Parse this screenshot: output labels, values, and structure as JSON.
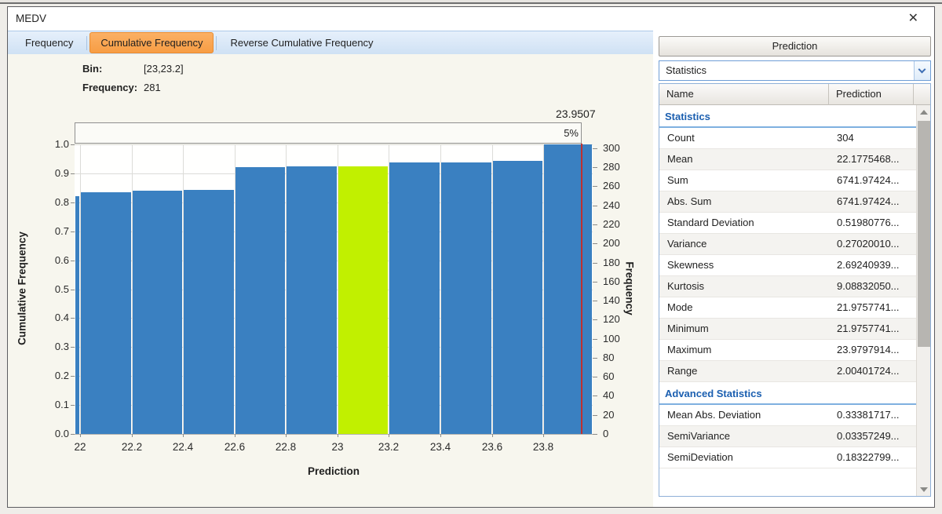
{
  "window": {
    "title": "MEDV",
    "close_label": "✕"
  },
  "tabs": [
    {
      "label": "Frequency",
      "active": false
    },
    {
      "label": "Cumulative Frequency",
      "active": true
    },
    {
      "label": "Reverse Cumulative Frequency",
      "active": false
    }
  ],
  "tooltip": {
    "bin_label": "Bin:",
    "bin_value": "[23,23.2]",
    "freq_label": "Frequency:",
    "freq_value": "281"
  },
  "chart_data": {
    "type": "bar",
    "xlabel": "Prediction",
    "ylabel_left": "Cumulative Frequency",
    "ylabel_right": "Frequency",
    "x_range": [
      21.978,
      23.992
    ],
    "y_left_range": [
      0,
      1
    ],
    "y_right_max_count": 304,
    "grid": true,
    "bar_color": "#3a80c1",
    "highlight_color": "#c1f000",
    "highlight_bin_index": 6,
    "x_ticks": [
      {
        "v": 22,
        "label": "22"
      },
      {
        "v": 22.2,
        "label": "22.2"
      },
      {
        "v": 22.4,
        "label": "22.4"
      },
      {
        "v": 22.6,
        "label": "22.6"
      },
      {
        "v": 22.8,
        "label": "22.8"
      },
      {
        "v": 23,
        "label": "23"
      },
      {
        "v": 23.2,
        "label": "23.2"
      },
      {
        "v": 23.4,
        "label": "23.4"
      },
      {
        "v": 23.6,
        "label": "23.6"
      },
      {
        "v": 23.8,
        "label": "23.8"
      }
    ],
    "y_left_ticks": [
      {
        "v": 0.0,
        "label": "0.0"
      },
      {
        "v": 0.1,
        "label": "0.1"
      },
      {
        "v": 0.2,
        "label": "0.2"
      },
      {
        "v": 0.3,
        "label": "0.3"
      },
      {
        "v": 0.4,
        "label": "0.4"
      },
      {
        "v": 0.5,
        "label": "0.5"
      },
      {
        "v": 0.6,
        "label": "0.6"
      },
      {
        "v": 0.7,
        "label": "0.7"
      },
      {
        "v": 0.8,
        "label": "0.8"
      },
      {
        "v": 0.9,
        "label": "0.9"
      },
      {
        "v": 1.0,
        "label": "1.0"
      }
    ],
    "y_right_ticks": [
      0,
      20,
      40,
      60,
      80,
      100,
      120,
      140,
      160,
      180,
      200,
      220,
      240,
      260,
      280,
      300
    ],
    "bins": [
      {
        "x0": 21.978,
        "x1": 22.0,
        "cum": 0.822,
        "count": 250
      },
      {
        "x0": 22.0,
        "x1": 22.2,
        "cum": 0.8355,
        "count": 254
      },
      {
        "x0": 22.2,
        "x1": 22.4,
        "cum": 0.8388,
        "count": 255
      },
      {
        "x0": 22.4,
        "x1": 22.6,
        "cum": 0.8421,
        "count": 256
      },
      {
        "x0": 22.6,
        "x1": 22.8,
        "cum": 0.9211,
        "count": 280
      },
      {
        "x0": 22.8,
        "x1": 23.0,
        "cum": 0.9243,
        "count": 281
      },
      {
        "x0": 23.0,
        "x1": 23.2,
        "cum": 0.9243,
        "count": 281
      },
      {
        "x0": 23.2,
        "x1": 23.4,
        "cum": 0.9375,
        "count": 285
      },
      {
        "x0": 23.4,
        "x1": 23.6,
        "cum": 0.9375,
        "count": 285
      },
      {
        "x0": 23.6,
        "x1": 23.8,
        "cum": 0.9441,
        "count": 287
      },
      {
        "x0": 23.8,
        "x1": 23.992,
        "cum": 1.0,
        "count": 304
      }
    ],
    "marker": {
      "value": 23.9507,
      "label": "23.9507",
      "percent_label": "5%",
      "color": "#bf3030"
    }
  },
  "right_panel": {
    "column_button": "Prediction",
    "dropdown_value": "Statistics",
    "table": {
      "columns": [
        "Name",
        "Prediction"
      ],
      "groups": [
        {
          "header": "Statistics",
          "rows": [
            [
              "Count",
              "304"
            ],
            [
              "Mean",
              "22.1775468..."
            ],
            [
              "Sum",
              "6741.97424..."
            ],
            [
              "Abs. Sum",
              "6741.97424..."
            ],
            [
              "Standard Deviation",
              "0.51980776..."
            ],
            [
              "Variance",
              "0.27020010..."
            ],
            [
              "Skewness",
              "2.69240939..."
            ],
            [
              "Kurtosis",
              "9.08832050..."
            ],
            [
              "Mode",
              "21.9757741..."
            ],
            [
              "Minimum",
              "21.9757741..."
            ],
            [
              "Maximum",
              "23.9797914..."
            ],
            [
              "Range",
              "2.00401724..."
            ]
          ]
        },
        {
          "header": "Advanced Statistics",
          "rows": [
            [
              "Mean Abs. Deviation",
              "0.33381717..."
            ],
            [
              "SemiVariance",
              "0.03357249..."
            ],
            [
              "SemiDeviation",
              "0.18322799..."
            ]
          ]
        }
      ]
    }
  }
}
